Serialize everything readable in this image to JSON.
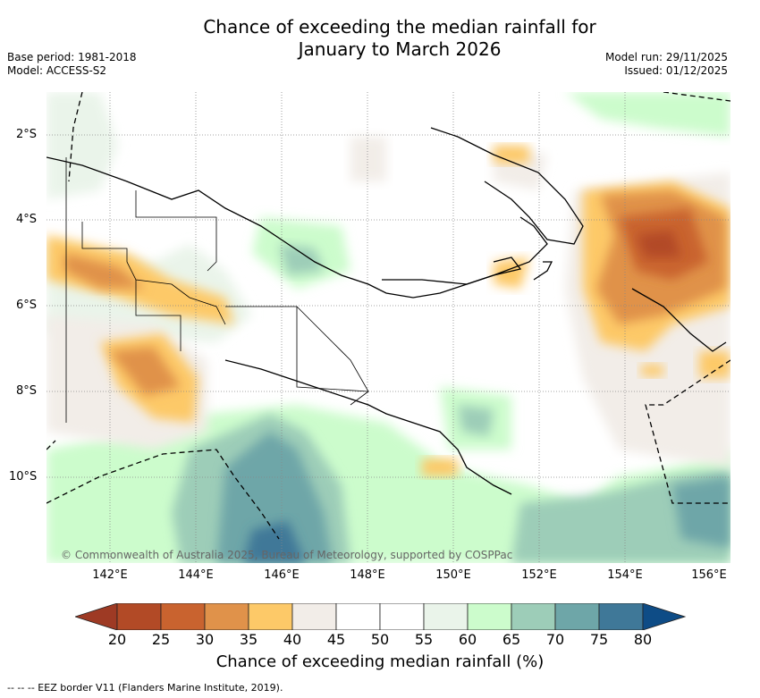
{
  "title_line1": "Chance of exceeding the median rainfall for",
  "title_line2": "January to March 2026",
  "base_period": "Base period: 1981-2018",
  "model": "Model: ACCESS-S2",
  "model_run": "Model run: 29/11/2025",
  "issued": "Issued: 01/12/2025",
  "lat_labels": [
    "2°S",
    "4°S",
    "6°S",
    "8°S",
    "10°S"
  ],
  "lon_labels": [
    "142°E",
    "144°E",
    "146°E",
    "148°E",
    "150°E",
    "152°E",
    "154°E",
    "156°E"
  ],
  "copyright": "© Commonwealth of Australia 2025, Bureau of Meteorology, supported by COSPPac",
  "colorbar": {
    "ticks": [
      "20",
      "25",
      "30",
      "35",
      "40",
      "45",
      "50",
      "55",
      "60",
      "65",
      "70",
      "75",
      "80"
    ],
    "colors": [
      "#9e3a24",
      "#b24a26",
      "#c9632f",
      "#e0924a",
      "#fdc968",
      "#f2ede8",
      "#ffffff",
      "#ffffff",
      "#eaf4ea",
      "#ccfccc",
      "#9dcdb8",
      "#6ea6a8",
      "#3f7898",
      "#0e4c86"
    ],
    "title": "Chance of exceeding median rainfall (%)"
  },
  "footer": "-- -- -- EEZ border V11 (Flanders Marine Institute, 2019)."
}
